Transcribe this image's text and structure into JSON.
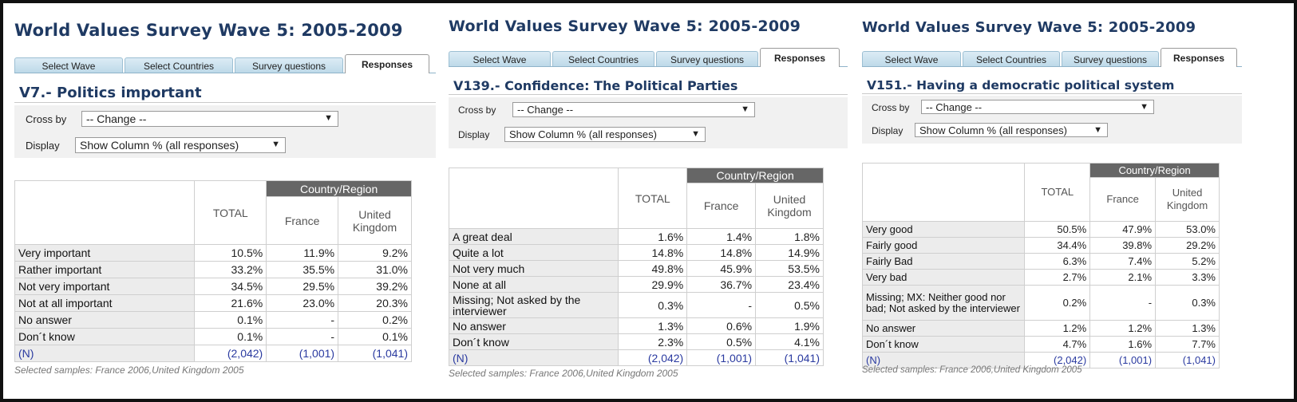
{
  "tabs": [
    "Select Wave",
    "Select Countries",
    "Survey questions",
    "Responses"
  ],
  "controls": {
    "cross_label": "Cross by",
    "cross_value": "-- Change --",
    "display_label": "Display",
    "display_value": "Show Column % (all responses)"
  },
  "headers": {
    "total": "TOTAL",
    "region": "Country/Region",
    "country1": "France",
    "country2": "United Kingdom"
  },
  "panels": [
    {
      "wave_title": "World Values Survey Wave 5: 2005-2009",
      "question": "V7.- Politics important",
      "rows": [
        {
          "label": "Very important",
          "total": "10.5%",
          "c1": "11.9%",
          "c2": "9.2%"
        },
        {
          "label": "Rather important",
          "total": "33.2%",
          "c1": "35.5%",
          "c2": "31.0%"
        },
        {
          "label": "Not very important",
          "total": "34.5%",
          "c1": "29.5%",
          "c2": "39.2%"
        },
        {
          "label": "Not at all important",
          "total": "21.6%",
          "c1": "23.0%",
          "c2": "20.3%"
        },
        {
          "label": "No answer",
          "total": "0.1%",
          "c1": "-",
          "c2": "0.2%"
        },
        {
          "label": "Don´t know",
          "total": "0.1%",
          "c1": "-",
          "c2": "0.1%"
        },
        {
          "label": "(N)",
          "total": "(2,042)",
          "c1": "(1,001)",
          "c2": "(1,041)"
        }
      ],
      "note": "Selected samples: France 2006,United Kingdom 2005"
    },
    {
      "wave_title": "World Values Survey Wave 5: 2005-2009",
      "question": "V139.- Confidence: The Political Parties",
      "rows": [
        {
          "label": "A great deal",
          "total": "1.6%",
          "c1": "1.4%",
          "c2": "1.8%"
        },
        {
          "label": "Quite a lot",
          "total": "14.8%",
          "c1": "14.8%",
          "c2": "14.9%"
        },
        {
          "label": "Not very much",
          "total": "49.8%",
          "c1": "45.9%",
          "c2": "53.5%"
        },
        {
          "label": "None at all",
          "total": "29.9%",
          "c1": "36.7%",
          "c2": "23.4%"
        },
        {
          "label": "Missing; Not asked by the interviewer",
          "total": "0.3%",
          "c1": "-",
          "c2": "0.5%"
        },
        {
          "label": "No answer",
          "total": "1.3%",
          "c1": "0.6%",
          "c2": "1.9%"
        },
        {
          "label": "Don´t know",
          "total": "2.3%",
          "c1": "0.5%",
          "c2": "4.1%"
        },
        {
          "label": "(N)",
          "total": "(2,042)",
          "c1": "(1,001)",
          "c2": "(1,041)"
        }
      ],
      "note": "Selected samples: France 2006,United Kingdom 2005"
    },
    {
      "wave_title": "World Values Survey Wave 5: 2005-2009",
      "question": "V151.- Having a democratic political system",
      "rows": [
        {
          "label": "Very good",
          "total": "50.5%",
          "c1": "47.9%",
          "c2": "53.0%"
        },
        {
          "label": "Fairly good",
          "total": "34.4%",
          "c1": "39.8%",
          "c2": "29.2%"
        },
        {
          "label": "Fairly Bad",
          "total": "6.3%",
          "c1": "7.4%",
          "c2": "5.2%"
        },
        {
          "label": "Very bad",
          "total": "2.7%",
          "c1": "2.1%",
          "c2": "3.3%"
        },
        {
          "label": "Missing; MX: Neither good nor bad; Not asked by the interviewer",
          "total": "0.2%",
          "c1": "-",
          "c2": "0.3%"
        },
        {
          "label": "No answer",
          "total": "1.2%",
          "c1": "1.2%",
          "c2": "1.3%"
        },
        {
          "label": "Don´t know",
          "total": "4.7%",
          "c1": "1.6%",
          "c2": "7.7%"
        },
        {
          "label": "(N)",
          "total": "(2,042)",
          "c1": "(1,001)",
          "c2": "(1,041)"
        }
      ],
      "note": "Selected samples: France 2006,United Kingdom 2005"
    }
  ]
}
